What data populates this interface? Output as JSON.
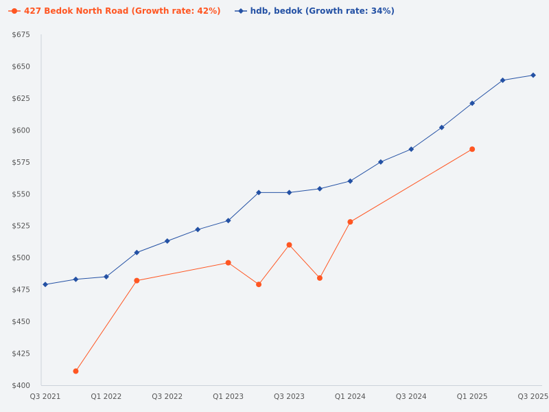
{
  "chart_data": {
    "type": "line",
    "title": "",
    "xlabel": "",
    "ylabel": "",
    "x": [
      "Q3 2021",
      "Q4 2021",
      "Q1 2022",
      "Q2 2022",
      "Q3 2022",
      "Q4 2022",
      "Q1 2023",
      "Q2 2023",
      "Q3 2023",
      "Q4 2023",
      "Q1 2024",
      "Q2 2024",
      "Q3 2024",
      "Q4 2024",
      "Q1 2025",
      "Q2 2025",
      "Q3 2025"
    ],
    "x_tick_labels": [
      "Q3 2021",
      "Q1 2022",
      "Q3 2022",
      "Q1 2023",
      "Q3 2023",
      "Q1 2024",
      "Q3 2024",
      "Q1 2025",
      "Q3 2025"
    ],
    "ylim": [
      400,
      675
    ],
    "y_ticks": [
      400,
      425,
      450,
      475,
      500,
      525,
      550,
      575,
      600,
      625,
      650,
      675
    ],
    "y_tick_format": "$",
    "grid": false,
    "legend_placement": "top-left",
    "series": [
      {
        "name": "427 Bedok North Road (Growth rate: 42%)",
        "color": "#ff5622",
        "marker": "circle",
        "values": [
          null,
          411,
          null,
          482,
          null,
          null,
          496,
          479,
          510,
          484,
          528,
          null,
          null,
          null,
          585,
          null,
          null
        ]
      },
      {
        "name": "hdb, bedok (Growth rate: 34%)",
        "color": "#2451a4",
        "marker": "diamond",
        "values": [
          479,
          483,
          485,
          504,
          513,
          522,
          529,
          551,
          551,
          554,
          560,
          575,
          585,
          602,
          621,
          639,
          643
        ]
      }
    ]
  }
}
